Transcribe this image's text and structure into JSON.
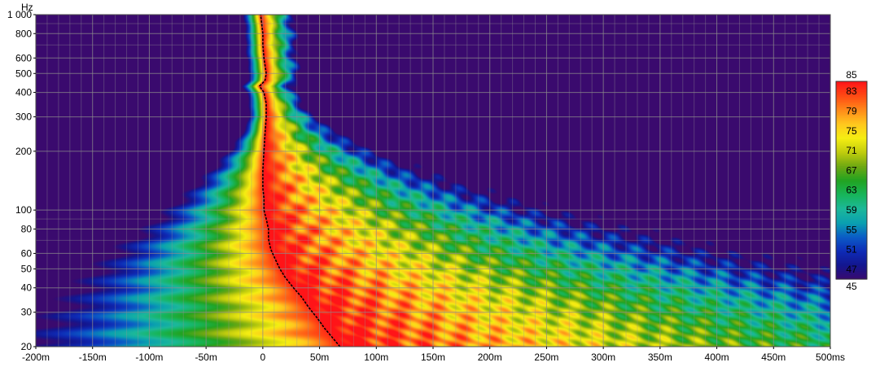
{
  "chart_data": {
    "type": "heatmap",
    "title": "",
    "xlabel": "",
    "ylabel": "",
    "y_unit": "Hz",
    "x_unit": "ms",
    "y_scale": "log",
    "xlim": [
      -200,
      500
    ],
    "ylim": [
      20,
      1000
    ],
    "x_ticks": [
      {
        "value": -200,
        "label": "-200m"
      },
      {
        "value": -150,
        "label": "-150m"
      },
      {
        "value": -100,
        "label": "-100m"
      },
      {
        "value": -50,
        "label": "-50m"
      },
      {
        "value": 0,
        "label": "0"
      },
      {
        "value": 50,
        "label": "50m"
      },
      {
        "value": 100,
        "label": "100m"
      },
      {
        "value": 150,
        "label": "150m"
      },
      {
        "value": 200,
        "label": "200m"
      },
      {
        "value": 250,
        "label": "250m"
      },
      {
        "value": 300,
        "label": "300m"
      },
      {
        "value": 350,
        "label": "350m"
      },
      {
        "value": 400,
        "label": "400m"
      },
      {
        "value": 450,
        "label": "450m"
      },
      {
        "value": 500,
        "label": "500ms"
      }
    ],
    "y_ticks": [
      {
        "value": 20,
        "label": "20"
      },
      {
        "value": 30,
        "label": "30"
      },
      {
        "value": 40,
        "label": "40"
      },
      {
        "value": 50,
        "label": "50"
      },
      {
        "value": 60,
        "label": "60"
      },
      {
        "value": 80,
        "label": "80"
      },
      {
        "value": 100,
        "label": "100"
      },
      {
        "value": 200,
        "label": "200"
      },
      {
        "value": 300,
        "label": "300"
      },
      {
        "value": 400,
        "label": "400"
      },
      {
        "value": 500,
        "label": "500"
      },
      {
        "value": 600,
        "label": "600"
      },
      {
        "value": 800,
        "label": "800"
      },
      {
        "value": 1000,
        "label": "1 000"
      }
    ],
    "minor_x_grid": [
      -190,
      -180,
      -170,
      -160,
      -140,
      -130,
      -120,
      -110,
      -90,
      -80,
      -70,
      -60,
      -40,
      -30,
      -20,
      -10,
      10,
      20,
      30,
      40,
      60,
      70,
      80,
      90,
      110,
      120,
      130,
      140,
      160,
      170,
      180,
      190,
      210,
      220,
      230,
      240,
      260,
      270,
      280,
      290,
      310,
      320,
      330,
      340,
      360,
      370,
      380,
      390,
      410,
      420,
      430,
      440,
      460,
      470,
      480,
      490
    ],
    "minor_y_grid": [
      70,
      90,
      700,
      900
    ],
    "colorbar": {
      "min": 45,
      "max": 85,
      "min_label": "45",
      "max_label": "85",
      "tick_labels": [
        "83",
        "79",
        "75",
        "71",
        "67",
        "63",
        "59",
        "55",
        "51",
        "47"
      ],
      "tick_values": [
        83,
        79,
        75,
        71,
        67,
        63,
        59,
        55,
        51,
        47
      ],
      "colors": [
        "#3a0a6e",
        "#13168f",
        "#0e2bb6",
        "#0b5cc6",
        "#0aa0b0",
        "#1cb89a",
        "#17b55a",
        "#22a322",
        "#6ea812",
        "#c0cc0e",
        "#f5ee12",
        "#ffc81e",
        "#ff8a1a",
        "#ff4a14",
        "#ff1418"
      ]
    },
    "background_level": 45,
    "peak_time_curve": {
      "freq": [
        20,
        22,
        25,
        28,
        32,
        36,
        40,
        45,
        50,
        56,
        63,
        71,
        80,
        90,
        100,
        115,
        130,
        160,
        200,
        250,
        300,
        350,
        400,
        430,
        460,
        500,
        600,
        700,
        800,
        900,
        1000
      ],
      "time": [
        68,
        62,
        54,
        48,
        40,
        34,
        27,
        20,
        15,
        11,
        7,
        5,
        5,
        3,
        1,
        1,
        0,
        0,
        1,
        2,
        3,
        3,
        1,
        -3,
        2,
        3,
        1,
        0,
        0,
        -1,
        -2
      ]
    },
    "grid": true,
    "legend": "colorbar-right"
  }
}
